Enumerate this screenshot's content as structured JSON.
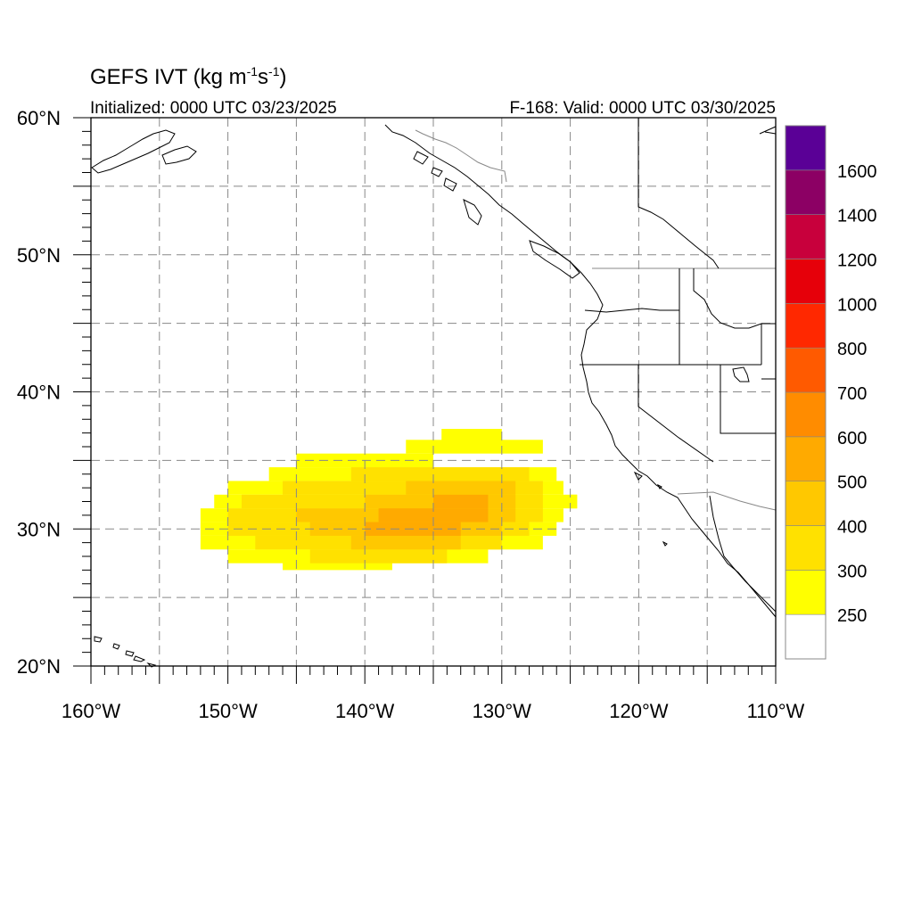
{
  "title": {
    "model": "GEFS IVT",
    "units_open": "(kg m",
    "units_exp1": "-1",
    "units_mid": "s",
    "units_exp2": "-1",
    "units_close": ")"
  },
  "subtitle_left": "Initialized: 0000 UTC 03/23/2025",
  "subtitle_right": "F-168: Valid: 0000 UTC 03/30/2025",
  "chart_data": {
    "type": "heatmap",
    "projection": "cylindrical-equidistant",
    "lon_range": [
      -160,
      -110
    ],
    "lat_range": [
      20,
      60
    ],
    "grid": true,
    "grid_style": "dashed",
    "x_ticks": [
      {
        "value": -160,
        "label": "160°W"
      },
      {
        "value": -150,
        "label": "150°W"
      },
      {
        "value": -140,
        "label": "140°W"
      },
      {
        "value": -130,
        "label": "130°W"
      },
      {
        "value": -120,
        "label": "120°W"
      },
      {
        "value": -110,
        "label": "110°W"
      }
    ],
    "y_ticks": [
      {
        "value": 20,
        "label": "20°N"
      },
      {
        "value": 30,
        "label": "30°N"
      },
      {
        "value": 40,
        "label": "40°N"
      },
      {
        "value": 50,
        "label": "50°N"
      },
      {
        "value": 60,
        "label": "60°N"
      }
    ],
    "colorbar": {
      "placement": "right",
      "levels": [
        250,
        300,
        400,
        500,
        600,
        700,
        800,
        1000,
        1200,
        1400,
        1600
      ],
      "labels": [
        "250",
        "300",
        "400",
        "500",
        "600",
        "700",
        "800",
        "1000",
        "1200",
        "1400",
        "1600"
      ],
      "colors": [
        "#ffffff",
        "#ffff00",
        "#ffe100",
        "#ffc800",
        "#ffaa00",
        "#ff8c00",
        "#ff5a00",
        "#ff2800",
        "#e6000a",
        "#c8003c",
        "#8c0064",
        "#5a0096"
      ]
    },
    "ivt_field": [
      {
        "lat": 32,
        "lon_start": -133,
        "lon_end": -129,
        "value": 250
      },
      {
        "lat": 32,
        "lon_start": -125,
        "lon_end": -124.5,
        "value": 250
      },
      {
        "lat": 35,
        "lon_start": -145,
        "lon_end": -135,
        "value": 250
      },
      {
        "lat": 36,
        "lon_start": -137,
        "lon_end": -127,
        "value": 250
      },
      {
        "lat": 36.8,
        "lon_start": -134.4,
        "lon_end": -130,
        "value": 250
      },
      {
        "lat": 34,
        "lon_start": -147,
        "lon_end": -126,
        "value": 250
      },
      {
        "lat": 33,
        "lon_start": -150,
        "lon_end": -125.5,
        "value": 250
      },
      {
        "lat": 32,
        "lon_start": -151,
        "lon_end": -124.5,
        "value": 250
      },
      {
        "lat": 31,
        "lon_start": -152,
        "lon_end": -125.5,
        "value": 250
      },
      {
        "lat": 30,
        "lon_start": -152,
        "lon_end": -126,
        "value": 250
      },
      {
        "lat": 29,
        "lon_start": -152,
        "lon_end": -127,
        "value": 250
      },
      {
        "lat": 28,
        "lon_start": -150,
        "lon_end": -131,
        "value": 250
      },
      {
        "lat": 27.5,
        "lon_start": -146,
        "lon_end": -138,
        "value": 250
      },
      {
        "lat": 34,
        "lon_start": -141,
        "lon_end": -128,
        "value": 300
      },
      {
        "lat": 33,
        "lon_start": -146,
        "lon_end": -127,
        "value": 300
      },
      {
        "lat": 32,
        "lon_start": -149,
        "lon_end": -127,
        "value": 300
      },
      {
        "lat": 31,
        "lon_start": -150,
        "lon_end": -127,
        "value": 300
      },
      {
        "lat": 30,
        "lon_start": -150,
        "lon_end": -128,
        "value": 300
      },
      {
        "lat": 29,
        "lon_start": -148,
        "lon_end": -130,
        "value": 300
      },
      {
        "lat": 28,
        "lon_start": -144,
        "lon_end": -134,
        "value": 300
      },
      {
        "lat": 33,
        "lon_start": -137,
        "lon_end": -129,
        "value": 400
      },
      {
        "lat": 32,
        "lon_start": -140,
        "lon_end": -129,
        "value": 400
      },
      {
        "lat": 31,
        "lon_start": -145,
        "lon_end": -129,
        "value": 400
      },
      {
        "lat": 30,
        "lon_start": -144,
        "lon_end": -130,
        "value": 400
      },
      {
        "lat": 29,
        "lon_start": -141,
        "lon_end": -133,
        "value": 400
      },
      {
        "lat": 32,
        "lon_start": -135,
        "lon_end": -131,
        "value": 500
      },
      {
        "lat": 31,
        "lon_start": -139,
        "lon_end": -131,
        "value": 500
      },
      {
        "lat": 30,
        "lon_start": -140,
        "lon_end": -133,
        "value": 500
      }
    ]
  }
}
